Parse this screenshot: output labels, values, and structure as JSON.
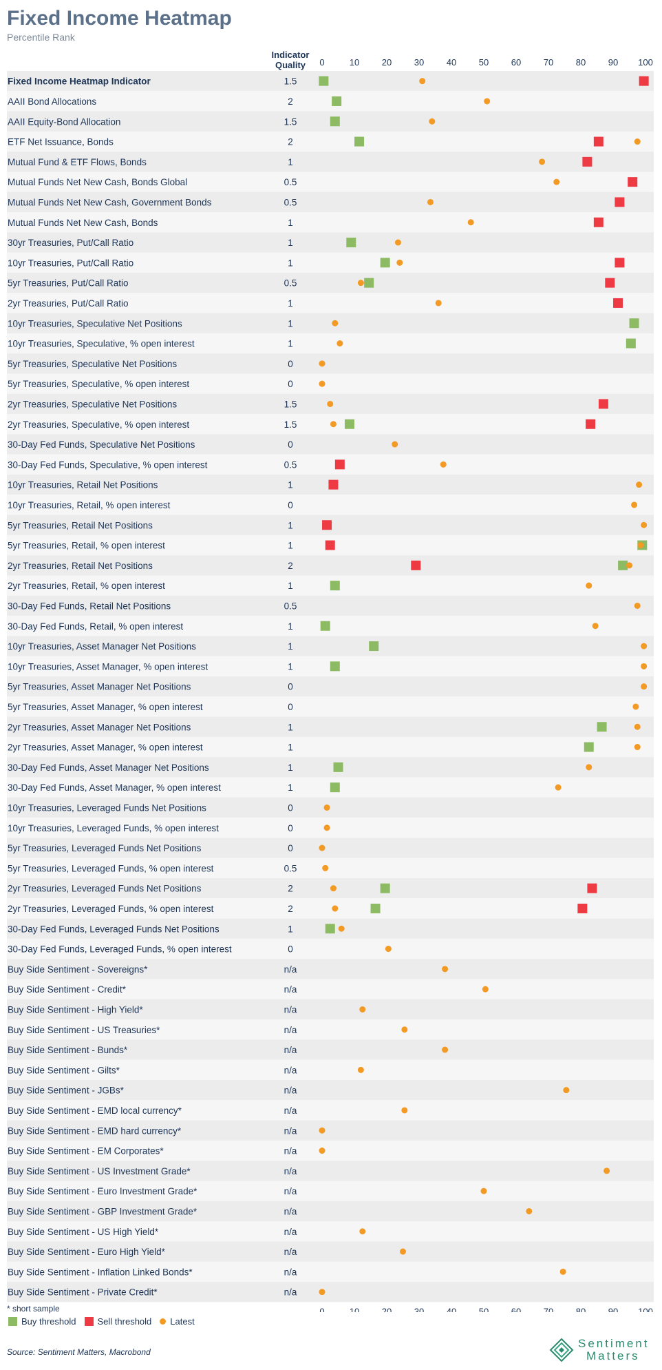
{
  "header": {
    "title": "Fixed Income Heatmap",
    "subtitle": "Percentile Rank",
    "quality_header_line1": "Indicator",
    "quality_header_line2": "Quality"
  },
  "footer": {
    "note": "* short sample",
    "legend": {
      "buy": "Buy threshold",
      "sell": "Sell threshold",
      "latest": "Latest"
    },
    "source": "Source: Sentiment Matters, Macrobond",
    "logo_line1": "Sentiment",
    "logo_line2": "Matters"
  },
  "colors": {
    "buy": "#8dbb63",
    "sell": "#ee3a43",
    "latest": "#f29a24",
    "row_dark": "#ececec",
    "row_light": "#f6f6f6"
  },
  "chart_data": {
    "type": "scatter",
    "title": "Fixed Income Heatmap",
    "subtitle": "Percentile Rank",
    "xlim": [
      0,
      100
    ],
    "xticks": [
      0,
      10,
      20,
      30,
      40,
      50,
      60,
      70,
      80,
      90,
      100
    ],
    "series": [
      {
        "name": "Buy threshold",
        "marker": "square"
      },
      {
        "name": "Sell threshold",
        "marker": "square"
      },
      {
        "name": "Latest",
        "marker": "circle"
      }
    ],
    "rows": [
      {
        "label": "Fixed Income Heatmap Indicator",
        "quality": "1.5",
        "buy": 0.5,
        "sell": 99.5,
        "latest": 31,
        "bold": true
      },
      {
        "label": "AAII Bond Allocations",
        "quality": "2",
        "buy": 4.5,
        "sell": null,
        "latest": 51
      },
      {
        "label": "AAII Equity-Bond Allocation",
        "quality": "1.5",
        "buy": 4,
        "sell": null,
        "latest": 34
      },
      {
        "label": "ETF Net Issuance, Bonds",
        "quality": "2",
        "buy": 11.5,
        "sell": 85.5,
        "latest": 97.5
      },
      {
        "label": "Mutual Fund & ETF Flows, Bonds",
        "quality": "1",
        "buy": null,
        "sell": 82,
        "latest": 68
      },
      {
        "label": "Mutual Funds Net New Cash, Bonds Global",
        "quality": "0.5",
        "buy": null,
        "sell": 96,
        "latest": 72.5
      },
      {
        "label": "Mutual Funds Net New Cash, Government Bonds",
        "quality": "0.5",
        "buy": null,
        "sell": 92,
        "latest": 33.5
      },
      {
        "label": "Mutual Funds Net New Cash, Bonds",
        "quality": "1",
        "buy": null,
        "sell": 85.5,
        "latest": 46
      },
      {
        "label": "30yr Treasuries, Put/Call Ratio",
        "quality": "1",
        "buy": 9,
        "sell": null,
        "latest": 23.5
      },
      {
        "label": "10yr Treasuries, Put/Call Ratio",
        "quality": "1",
        "buy": 19.5,
        "sell": 92,
        "latest": 24
      },
      {
        "label": "5yr Treasuries, Put/Call Ratio",
        "quality": "0.5",
        "buy": 14.5,
        "sell": 89,
        "latest": 12
      },
      {
        "label": "2yr Treasuries, Put/Call Ratio",
        "quality": "1",
        "buy": null,
        "sell": 91.5,
        "latest": 36
      },
      {
        "label": "10yr Treasuries, Speculative Net Positions",
        "quality": "1",
        "buy": 96.5,
        "sell": null,
        "latest": 4
      },
      {
        "label": "10yr Treasuries, Speculative, % open interest",
        "quality": "1",
        "buy": 95.5,
        "sell": null,
        "latest": 5.5
      },
      {
        "label": "5yr Treasuries, Speculative Net Positions",
        "quality": "0",
        "buy": null,
        "sell": null,
        "latest": 0
      },
      {
        "label": "5yr Treasuries, Speculative, % open interest",
        "quality": "0",
        "buy": null,
        "sell": null,
        "latest": 0
      },
      {
        "label": "2yr Treasuries, Speculative Net Positions",
        "quality": "1.5",
        "buy": null,
        "sell": 87,
        "latest": 2.5
      },
      {
        "label": "2yr Treasuries, Speculative, % open interest",
        "quality": "1.5",
        "buy": 8.5,
        "sell": 83,
        "latest": 3.5
      },
      {
        "label": "30-Day Fed Funds, Speculative Net Positions",
        "quality": "0",
        "buy": null,
        "sell": null,
        "latest": 22.5
      },
      {
        "label": "30-Day Fed Funds, Speculative, % open interest",
        "quality": "0.5",
        "buy": null,
        "sell": 5.5,
        "latest": 37.5
      },
      {
        "label": "10yr Treasuries, Retail Net Positions",
        "quality": "1",
        "buy": null,
        "sell": 3.5,
        "latest": 98
      },
      {
        "label": "10yr Treasuries, Retail, % open interest",
        "quality": "0",
        "buy": null,
        "sell": null,
        "latest": 96.5
      },
      {
        "label": "5yr Treasuries, Retail Net Positions",
        "quality": "1",
        "buy": null,
        "sell": 1.5,
        "latest": 99.5
      },
      {
        "label": "5yr Treasuries, Retail, % open interest",
        "quality": "1",
        "buy": 99,
        "sell": 2.5,
        "latest": 98.5
      },
      {
        "label": "2yr Treasuries, Retail Net Positions",
        "quality": "2",
        "buy": 93,
        "sell": 29,
        "latest": 95
      },
      {
        "label": "2yr Treasuries, Retail, % open interest",
        "quality": "1",
        "buy": 4,
        "sell": null,
        "latest": 82.5
      },
      {
        "label": "30-Day Fed Funds, Retail Net Positions",
        "quality": "0.5",
        "buy": null,
        "sell": null,
        "latest": 97.5
      },
      {
        "label": "30-Day Fed Funds, Retail, % open interest",
        "quality": "1",
        "buy": 1,
        "sell": null,
        "latest": 84.5
      },
      {
        "label": "10yr Treasuries, Asset Manager Net Positions",
        "quality": "1",
        "buy": 16,
        "sell": null,
        "latest": 99.5
      },
      {
        "label": "10yr Treasuries, Asset Manager, % open interest",
        "quality": "1",
        "buy": 4,
        "sell": null,
        "latest": 99.5
      },
      {
        "label": "5yr Treasuries, Asset Manager Net Positions",
        "quality": "0",
        "buy": null,
        "sell": null,
        "latest": 99.5
      },
      {
        "label": "5yr Treasuries, Asset Manager, % open interest",
        "quality": "0",
        "buy": null,
        "sell": null,
        "latest": 97
      },
      {
        "label": "2yr Treasuries, Asset Manager Net Positions",
        "quality": "1",
        "buy": 86.5,
        "sell": null,
        "latest": 97.5
      },
      {
        "label": "2yr Treasuries, Asset Manager, % open interest",
        "quality": "1",
        "buy": 82.5,
        "sell": null,
        "latest": 97.5
      },
      {
        "label": "30-Day Fed Funds, Asset Manager Net Positions",
        "quality": "1",
        "buy": 5,
        "sell": null,
        "latest": 82.5
      },
      {
        "label": "30-Day Fed Funds, Asset Manager, % open interest",
        "quality": "1",
        "buy": 4,
        "sell": null,
        "latest": 73
      },
      {
        "label": "10yr Treasuries, Leveraged Funds Net Positions",
        "quality": "0",
        "buy": null,
        "sell": null,
        "latest": 1.5
      },
      {
        "label": "10yr Treasuries, Leveraged Funds, % open interest",
        "quality": "0",
        "buy": null,
        "sell": null,
        "latest": 1.5
      },
      {
        "label": "5yr Treasuries, Leveraged Funds Net Positions",
        "quality": "0",
        "buy": null,
        "sell": null,
        "latest": 0
      },
      {
        "label": "5yr Treasuries, Leveraged Funds, % open interest",
        "quality": "0.5",
        "buy": null,
        "sell": null,
        "latest": 1
      },
      {
        "label": "2yr Treasuries, Leveraged Funds Net Positions",
        "quality": "2",
        "buy": 19.5,
        "sell": 83.5,
        "latest": 3.5
      },
      {
        "label": "2yr Treasuries, Leveraged Funds, % open interest",
        "quality": "2",
        "buy": 16.5,
        "sell": 80.5,
        "latest": 4
      },
      {
        "label": "30-Day Fed Funds, Leveraged Funds Net Positions",
        "quality": "1",
        "buy": 2.5,
        "sell": null,
        "latest": 6
      },
      {
        "label": "30-Day Fed Funds, Leveraged Funds, % open interest",
        "quality": "0",
        "buy": null,
        "sell": null,
        "latest": 20.5
      },
      {
        "label": "Buy Side Sentiment - Sovereigns*",
        "quality": "n/a",
        "buy": null,
        "sell": null,
        "latest": 38
      },
      {
        "label": "Buy Side Sentiment - Credit*",
        "quality": "n/a",
        "buy": null,
        "sell": null,
        "latest": 50.5
      },
      {
        "label": "Buy Side Sentiment - High Yield*",
        "quality": "n/a",
        "buy": null,
        "sell": null,
        "latest": 12.5
      },
      {
        "label": "Buy Side Sentiment - US Treasuries*",
        "quality": "n/a",
        "buy": null,
        "sell": null,
        "latest": 25.5
      },
      {
        "label": "Buy Side Sentiment - Bunds*",
        "quality": "n/a",
        "buy": null,
        "sell": null,
        "latest": 38
      },
      {
        "label": "Buy Side Sentiment - Gilts*",
        "quality": "n/a",
        "buy": null,
        "sell": null,
        "latest": 12
      },
      {
        "label": "Buy Side Sentiment - JGBs*",
        "quality": "n/a",
        "buy": null,
        "sell": null,
        "latest": 75.5
      },
      {
        "label": "Buy Side Sentiment - EMD local currency*",
        "quality": "n/a",
        "buy": null,
        "sell": null,
        "latest": 25.5
      },
      {
        "label": "Buy Side Sentiment - EMD hard currency*",
        "quality": "n/a",
        "buy": null,
        "sell": null,
        "latest": 0
      },
      {
        "label": "Buy Side Sentiment - EM Corporates*",
        "quality": "n/a",
        "buy": null,
        "sell": null,
        "latest": 0
      },
      {
        "label": "Buy Side Sentiment - US Investment Grade*",
        "quality": "n/a",
        "buy": null,
        "sell": null,
        "latest": 88
      },
      {
        "label": "Buy Side Sentiment - Euro Investment Grade*",
        "quality": "n/a",
        "buy": null,
        "sell": null,
        "latest": 50
      },
      {
        "label": "Buy Side Sentiment - GBP Investment Grade*",
        "quality": "n/a",
        "buy": null,
        "sell": null,
        "latest": 64
      },
      {
        "label": "Buy Side Sentiment - US High Yield*",
        "quality": "n/a",
        "buy": null,
        "sell": null,
        "latest": 12.5
      },
      {
        "label": "Buy Side Sentiment - Euro High Yield*",
        "quality": "n/a",
        "buy": null,
        "sell": null,
        "latest": 25
      },
      {
        "label": "Buy Side Sentiment - Inflation Linked Bonds*",
        "quality": "n/a",
        "buy": null,
        "sell": null,
        "latest": 74.5
      },
      {
        "label": "Buy Side Sentiment - Private Credit*",
        "quality": "n/a",
        "buy": null,
        "sell": null,
        "latest": 0
      }
    ]
  }
}
